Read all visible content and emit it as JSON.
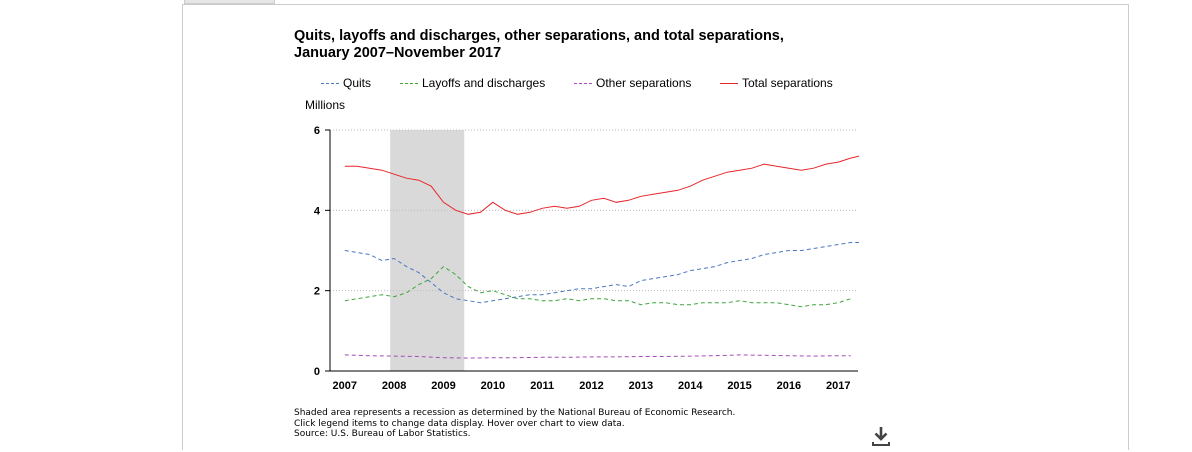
{
  "chart_data": {
    "type": "line",
    "title": "Quits, layoffs and discharges, other separations, and total separations, January 2007–November 2017",
    "ylabel": "Millions",
    "xlabel": "",
    "ylim": [
      0,
      6
    ],
    "yticks": [
      "0",
      "2",
      "4",
      "6"
    ],
    "xlim": [
      2006.7,
      2017.4
    ],
    "xticks": [
      "2007",
      "2008",
      "2009",
      "2010",
      "2011",
      "2012",
      "2013",
      "2014",
      "2015",
      "2016",
      "2017"
    ],
    "grid": true,
    "legend_position": "top",
    "recession": {
      "start": 2007.92,
      "end": 2009.42,
      "color": "#d9d9d9"
    },
    "series": [
      {
        "name": "Quits",
        "color": "#4a78c2",
        "dash": "4,3",
        "x": [
          2007.0,
          2007.25,
          2007.5,
          2007.75,
          2008.0,
          2008.25,
          2008.5,
          2008.75,
          2009.0,
          2009.25,
          2009.5,
          2009.75,
          2010.0,
          2010.25,
          2010.5,
          2010.75,
          2011.0,
          2011.25,
          2011.5,
          2011.75,
          2012.0,
          2012.25,
          2012.5,
          2012.75,
          2013.0,
          2013.25,
          2013.5,
          2013.75,
          2014.0,
          2014.25,
          2014.5,
          2014.75,
          2015.0,
          2015.25,
          2015.5,
          2015.75,
          2016.0,
          2016.25,
          2016.5,
          2016.75,
          2017.0,
          2017.25,
          2017.42
        ],
        "y": [
          3.0,
          2.95,
          2.9,
          2.75,
          2.8,
          2.6,
          2.45,
          2.2,
          1.95,
          1.8,
          1.75,
          1.7,
          1.75,
          1.8,
          1.85,
          1.9,
          1.9,
          1.95,
          2.0,
          2.05,
          2.05,
          2.1,
          2.15,
          2.1,
          2.25,
          2.3,
          2.35,
          2.4,
          2.5,
          2.55,
          2.6,
          2.7,
          2.75,
          2.8,
          2.9,
          2.95,
          3.0,
          3.0,
          3.05,
          3.1,
          3.15,
          3.2,
          3.2
        ]
      },
      {
        "name": "Layoffs and discharges",
        "color": "#3da63d",
        "dash": "4,3",
        "x": [
          2007.0,
          2007.25,
          2007.5,
          2007.75,
          2008.0,
          2008.25,
          2008.5,
          2008.75,
          2009.0,
          2009.25,
          2009.5,
          2009.75,
          2010.0,
          2010.25,
          2010.5,
          2010.75,
          2011.0,
          2011.25,
          2011.5,
          2011.75,
          2012.0,
          2012.25,
          2012.5,
          2012.75,
          2013.0,
          2013.25,
          2013.5,
          2013.75,
          2014.0,
          2014.25,
          2014.5,
          2014.75,
          2015.0,
          2015.25,
          2015.5,
          2015.75,
          2016.0,
          2016.25,
          2016.5,
          2016.75,
          2017.0,
          2017.25
        ],
        "y": [
          1.75,
          1.8,
          1.85,
          1.9,
          1.85,
          1.95,
          2.15,
          2.3,
          2.6,
          2.4,
          2.1,
          1.95,
          2.0,
          1.9,
          1.8,
          1.8,
          1.75,
          1.75,
          1.8,
          1.75,
          1.8,
          1.8,
          1.75,
          1.75,
          1.65,
          1.7,
          1.7,
          1.65,
          1.65,
          1.7,
          1.7,
          1.7,
          1.75,
          1.7,
          1.7,
          1.7,
          1.65,
          1.6,
          1.65,
          1.65,
          1.7,
          1.8
        ]
      },
      {
        "name": "Other separations",
        "color": "#a64db8",
        "dash": "4,3",
        "x": [
          2007.0,
          2007.5,
          2008.0,
          2008.5,
          2009.0,
          2009.5,
          2010.0,
          2010.5,
          2011.0,
          2011.5,
          2012.0,
          2012.5,
          2013.0,
          2013.5,
          2014.0,
          2014.5,
          2015.0,
          2015.5,
          2016.0,
          2016.5,
          2017.0,
          2017.25
        ],
        "y": [
          0.4,
          0.38,
          0.37,
          0.36,
          0.33,
          0.32,
          0.33,
          0.33,
          0.34,
          0.34,
          0.35,
          0.35,
          0.36,
          0.36,
          0.37,
          0.38,
          0.4,
          0.39,
          0.38,
          0.37,
          0.38,
          0.38
        ]
      },
      {
        "name": "Total separations",
        "color": "#e8262b",
        "dash": "",
        "x": [
          2007.0,
          2007.25,
          2007.5,
          2007.75,
          2008.0,
          2008.25,
          2008.5,
          2008.75,
          2009.0,
          2009.25,
          2009.5,
          2009.75,
          2010.0,
          2010.25,
          2010.5,
          2010.75,
          2011.0,
          2011.25,
          2011.5,
          2011.75,
          2012.0,
          2012.25,
          2012.5,
          2012.75,
          2013.0,
          2013.25,
          2013.5,
          2013.75,
          2014.0,
          2014.25,
          2014.5,
          2014.75,
          2015.0,
          2015.25,
          2015.5,
          2015.75,
          2016.0,
          2016.25,
          2016.5,
          2016.75,
          2017.0,
          2017.25,
          2017.42
        ],
        "y": [
          5.1,
          5.1,
          5.05,
          5.0,
          4.9,
          4.8,
          4.75,
          4.6,
          4.2,
          4.0,
          3.9,
          3.95,
          4.2,
          4.0,
          3.9,
          3.95,
          4.05,
          4.1,
          4.05,
          4.1,
          4.25,
          4.3,
          4.2,
          4.25,
          4.35,
          4.4,
          4.45,
          4.5,
          4.6,
          4.75,
          4.85,
          4.95,
          5.0,
          5.05,
          5.15,
          5.1,
          5.05,
          5.0,
          5.05,
          5.15,
          5.2,
          5.3,
          5.35
        ]
      }
    ]
  },
  "notes": [
    "Shaded area represents a recession as determined by the National Bureau of Economic Research.",
    "Click legend items to change data display. Hover over chart to view data.",
    "Source: U.S. Bureau of Labor Statistics."
  ],
  "icons": {
    "download": "download-icon"
  }
}
